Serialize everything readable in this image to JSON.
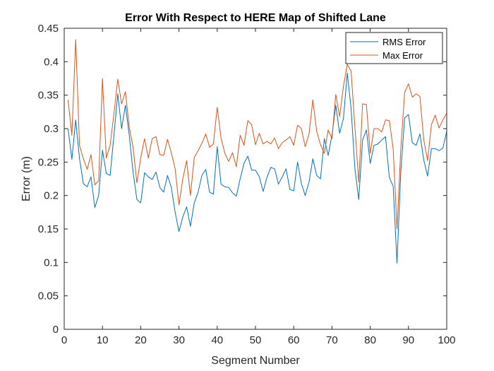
{
  "chart_data": {
    "type": "line",
    "title": "Error With Respect to HERE Map of Shifted Lane",
    "xlabel": "Segment Number",
    "ylabel": "Error (m)",
    "xlim": [
      0,
      100
    ],
    "ylim": [
      0,
      0.45
    ],
    "xticks": [
      "0",
      "10",
      "20",
      "30",
      "40",
      "50",
      "60",
      "70",
      "80",
      "90",
      "100"
    ],
    "yticks": [
      "0",
      "0.05",
      "0.1",
      "0.15",
      "0.2",
      "0.25",
      "0.3",
      "0.35",
      "0.4",
      "0.45"
    ],
    "grid": false,
    "legend_position": "top-right",
    "x": [
      1,
      2,
      3,
      4,
      5,
      6,
      7,
      8,
      9,
      10,
      11,
      12,
      13,
      14,
      15,
      16,
      17,
      18,
      19,
      20,
      21,
      22,
      23,
      24,
      25,
      26,
      27,
      28,
      29,
      30,
      31,
      32,
      33,
      34,
      35,
      36,
      37,
      38,
      39,
      40,
      41,
      42,
      43,
      44,
      45,
      46,
      47,
      48,
      49,
      50,
      51,
      52,
      53,
      54,
      55,
      56,
      57,
      58,
      59,
      60,
      61,
      62,
      63,
      64,
      65,
      66,
      67,
      68,
      69,
      70,
      71,
      72,
      73,
      74,
      75,
      76,
      77,
      78,
      79,
      80,
      81,
      82,
      83,
      84,
      85,
      86,
      87,
      88,
      89,
      90,
      91,
      92,
      93,
      94,
      95,
      96,
      97,
      98,
      99,
      100
    ],
    "series": [
      {
        "name": "RMS Error",
        "color": "#0072BD",
        "values": [
          0.3,
          0.254,
          0.313,
          0.255,
          0.218,
          0.213,
          0.228,
          0.182,
          0.2,
          0.268,
          0.233,
          0.23,
          0.29,
          0.352,
          0.3,
          0.335,
          0.29,
          0.235,
          0.194,
          0.189,
          0.234,
          0.228,
          0.224,
          0.235,
          0.212,
          0.205,
          0.23,
          0.212,
          0.175,
          0.146,
          0.168,
          0.183,
          0.154,
          0.189,
          0.205,
          0.23,
          0.239,
          0.205,
          0.202,
          0.273,
          0.217,
          0.213,
          0.212,
          0.204,
          0.199,
          0.225,
          0.248,
          0.259,
          0.238,
          0.238,
          0.228,
          0.206,
          0.227,
          0.242,
          0.24,
          0.217,
          0.228,
          0.24,
          0.209,
          0.207,
          0.25,
          0.218,
          0.2,
          0.22,
          0.255,
          0.23,
          0.225,
          0.285,
          0.26,
          0.29,
          0.335,
          0.293,
          0.315,
          0.383,
          0.33,
          0.24,
          0.194,
          0.283,
          0.298,
          0.248,
          0.275,
          0.277,
          0.283,
          0.288,
          0.227,
          0.214,
          0.099,
          0.236,
          0.316,
          0.321,
          0.279,
          0.275,
          0.292,
          0.253,
          0.229,
          0.27,
          0.27,
          0.267,
          0.271,
          0.296
        ]
      },
      {
        "name": "Max Error",
        "color": "#D95319",
        "values": [
          0.343,
          0.29,
          0.433,
          0.275,
          0.255,
          0.239,
          0.261,
          0.216,
          0.222,
          0.375,
          0.256,
          0.275,
          0.322,
          0.374,
          0.337,
          0.355,
          0.302,
          0.272,
          0.219,
          0.256,
          0.285,
          0.256,
          0.285,
          0.288,
          0.261,
          0.26,
          0.284,
          0.264,
          0.24,
          0.186,
          0.225,
          0.252,
          0.2,
          0.257,
          0.267,
          0.278,
          0.292,
          0.272,
          0.277,
          0.332,
          0.286,
          0.263,
          0.251,
          0.264,
          0.243,
          0.29,
          0.275,
          0.312,
          0.306,
          0.276,
          0.293,
          0.277,
          0.281,
          0.277,
          0.286,
          0.27,
          0.279,
          0.283,
          0.288,
          0.275,
          0.305,
          0.3,
          0.273,
          0.292,
          0.343,
          0.296,
          0.276,
          0.263,
          0.298,
          0.285,
          0.351,
          0.318,
          0.363,
          0.396,
          0.386,
          0.302,
          0.22,
          0.337,
          0.336,
          0.263,
          0.3,
          0.3,
          0.295,
          0.313,
          0.312,
          0.27,
          0.15,
          0.27,
          0.354,
          0.367,
          0.347,
          0.352,
          0.348,
          0.283,
          0.252,
          0.306,
          0.32,
          0.301,
          0.313,
          0.323
        ]
      }
    ]
  }
}
